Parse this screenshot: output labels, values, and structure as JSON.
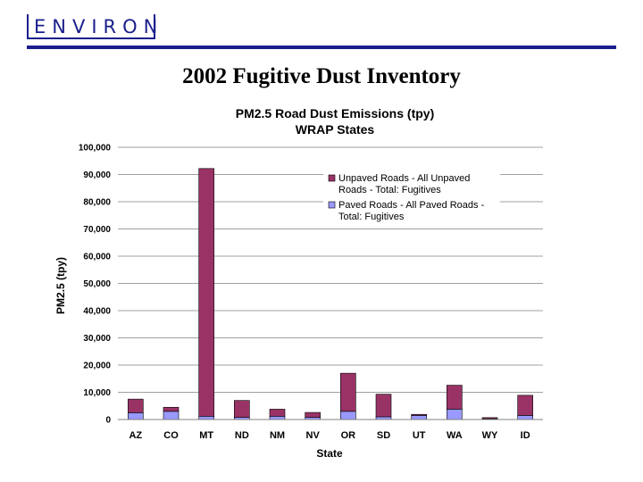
{
  "header": {
    "logo_text": "ENVIRON",
    "slide_title": "2002 Fugitive Dust Inventory"
  },
  "colors": {
    "brand": "#1a1f8c",
    "unpaved": "#993366",
    "paved": "#9999ff",
    "grid": "#a0a0a0"
  },
  "chart_data": {
    "type": "bar",
    "stacked": true,
    "title": "PM2.5 Road Dust Emissions (tpy)",
    "subtitle": "WRAP States",
    "xlabel": "State",
    "ylabel": "PM2.5 (tpy)",
    "ylim": [
      0,
      100000
    ],
    "yticks": [
      0,
      10000,
      20000,
      30000,
      40000,
      50000,
      60000,
      70000,
      80000,
      90000,
      100000
    ],
    "ytick_labels": [
      "0",
      "10,000",
      "20,000",
      "30,000",
      "40,000",
      "50,000",
      "60,000",
      "70,000",
      "80,000",
      "90,000",
      "100,000"
    ],
    "grid": "horizontal",
    "legend_position": "top-right",
    "categories": [
      "AZ",
      "CO",
      "MT",
      "ND",
      "NM",
      "NV",
      "OR",
      "SD",
      "UT",
      "WA",
      "WY",
      "ID"
    ],
    "series": [
      {
        "name": "Paved Roads - All Paved Roads - Total: Fugitives",
        "values": [
          2500,
          3000,
          1200,
          800,
          1200,
          800,
          3000,
          1000,
          1500,
          3800,
          300,
          1500
        ]
      },
      {
        "name": "Unpaved Roads - All Unpaved Roads - Total: Fugitives",
        "values": [
          5000,
          1500,
          91000,
          6200,
          2600,
          1800,
          14000,
          8300,
          400,
          8800,
          400,
          7400
        ]
      }
    ],
    "legend": [
      "Unpaved Roads - All Unpaved Roads - Total: Fugitives",
      "Paved Roads - All Paved Roads - Total: Fugitives"
    ]
  }
}
